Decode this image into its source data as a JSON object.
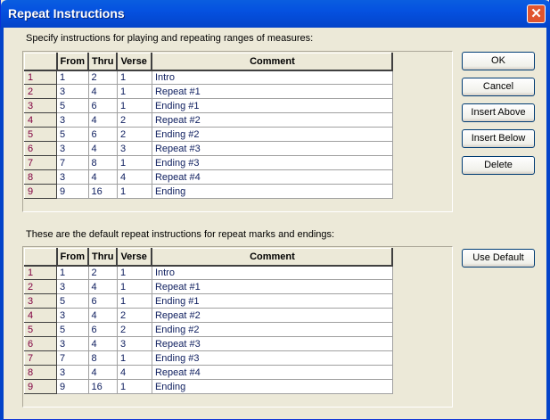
{
  "window": {
    "title": "Repeat Instructions"
  },
  "top": {
    "label": "Specify instructions for playing and repeating ranges of measures:"
  },
  "bottom": {
    "label": "These are the default repeat instructions for repeat marks and endings:"
  },
  "columns": [
    "From",
    "Thru",
    "Verse",
    "Comment"
  ],
  "rows": [
    [
      "1",
      "1",
      "2",
      "1",
      "Intro"
    ],
    [
      "2",
      "3",
      "4",
      "1",
      "Repeat #1"
    ],
    [
      "3",
      "5",
      "6",
      "1",
      "Ending #1"
    ],
    [
      "4",
      "3",
      "4",
      "2",
      "Repeat #2"
    ],
    [
      "5",
      "5",
      "6",
      "2",
      "Ending #2"
    ],
    [
      "6",
      "3",
      "4",
      "3",
      "Repeat #3"
    ],
    [
      "7",
      "7",
      "8",
      "1",
      "Ending #3"
    ],
    [
      "8",
      "3",
      "4",
      "4",
      "Repeat #4"
    ],
    [
      "9",
      "9",
      "16",
      "1",
      "Ending"
    ]
  ],
  "default_rows": [
    [
      "1",
      "1",
      "2",
      "1",
      "Intro"
    ],
    [
      "2",
      "3",
      "4",
      "1",
      "Repeat #1"
    ],
    [
      "3",
      "5",
      "6",
      "1",
      "Ending #1"
    ],
    [
      "4",
      "3",
      "4",
      "2",
      "Repeat #2"
    ],
    [
      "5",
      "5",
      "6",
      "2",
      "Ending #2"
    ],
    [
      "6",
      "3",
      "4",
      "3",
      "Repeat #3"
    ],
    [
      "7",
      "7",
      "8",
      "1",
      "Ending #3"
    ],
    [
      "8",
      "3",
      "4",
      "4",
      "Repeat #4"
    ],
    [
      "9",
      "9",
      "16",
      "1",
      "Ending"
    ]
  ],
  "buttons": {
    "ok": "OK",
    "cancel": "Cancel",
    "insert_above": "Insert Above",
    "insert_below": "Insert Below",
    "delete": "Delete",
    "use_default": "Use Default"
  },
  "icons": {
    "close": "close-icon"
  }
}
